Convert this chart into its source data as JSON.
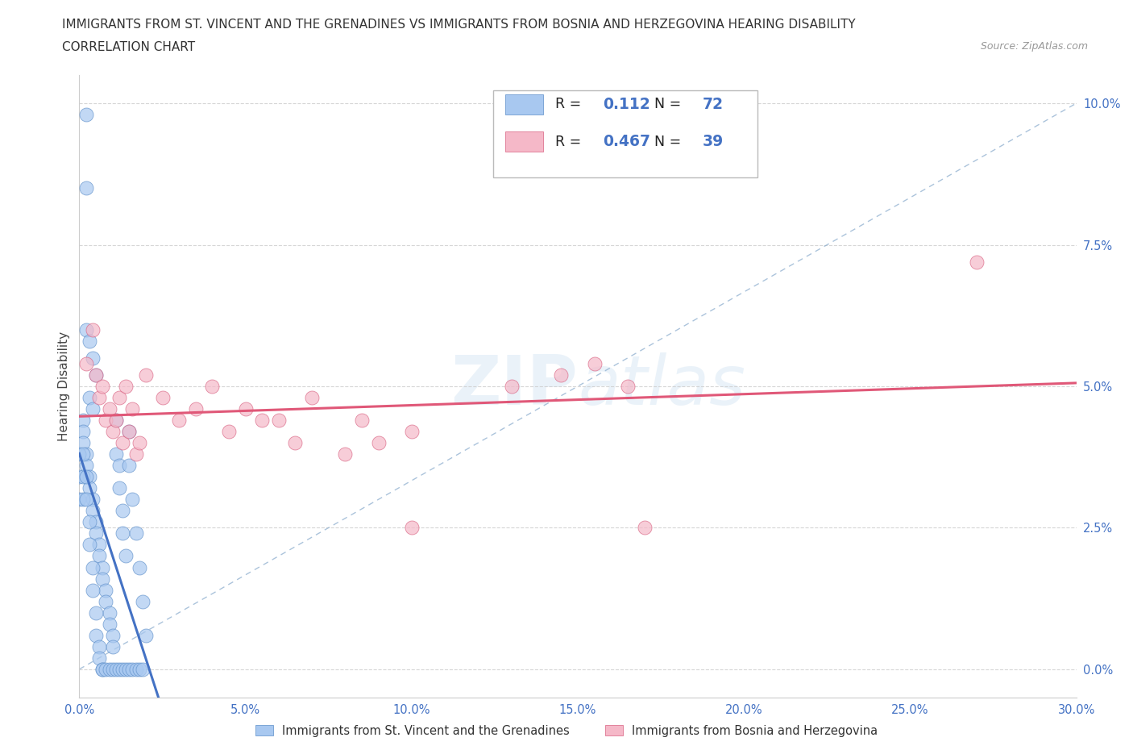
{
  "title_line1": "IMMIGRANTS FROM ST. VINCENT AND THE GRENADINES VS IMMIGRANTS FROM BOSNIA AND HERZEGOVINA HEARING DISABILITY",
  "title_line2": "CORRELATION CHART",
  "source": "Source: ZipAtlas.com",
  "ylabel": "Hearing Disability",
  "watermark": "ZIPatlas",
  "series1": {
    "label": "Immigrants from St. Vincent and the Grenadines",
    "R": 0.112,
    "N": 72,
    "color": "#a8c8f0",
    "edge_color": "#5b8dc8",
    "line_color": "#4472c4"
  },
  "series2": {
    "label": "Immigrants from Bosnia and Herzegovina",
    "R": 0.467,
    "N": 39,
    "color": "#f5b8c8",
    "edge_color": "#d86080",
    "line_color": "#e05878"
  },
  "xlim": [
    0.0,
    0.3
  ],
  "ylim": [
    -0.005,
    0.105
  ],
  "xticks": [
    0.0,
    0.05,
    0.1,
    0.15,
    0.2,
    0.25,
    0.3
  ],
  "yticks": [
    0.0,
    0.025,
    0.05,
    0.075,
    0.1
  ],
  "xticklabels": [
    "0.0%",
    "5.0%",
    "10.0%",
    "15.0%",
    "20.0%",
    "25.0%",
    "30.0%"
  ],
  "yticklabels": [
    "0.0%",
    "2.5%",
    "5.0%",
    "7.5%",
    "10.0%"
  ],
  "grid_color": "#cccccc",
  "background_color": "#ffffff",
  "diagonal_line_color": "#88aacc",
  "tick_color": "#4472c4"
}
